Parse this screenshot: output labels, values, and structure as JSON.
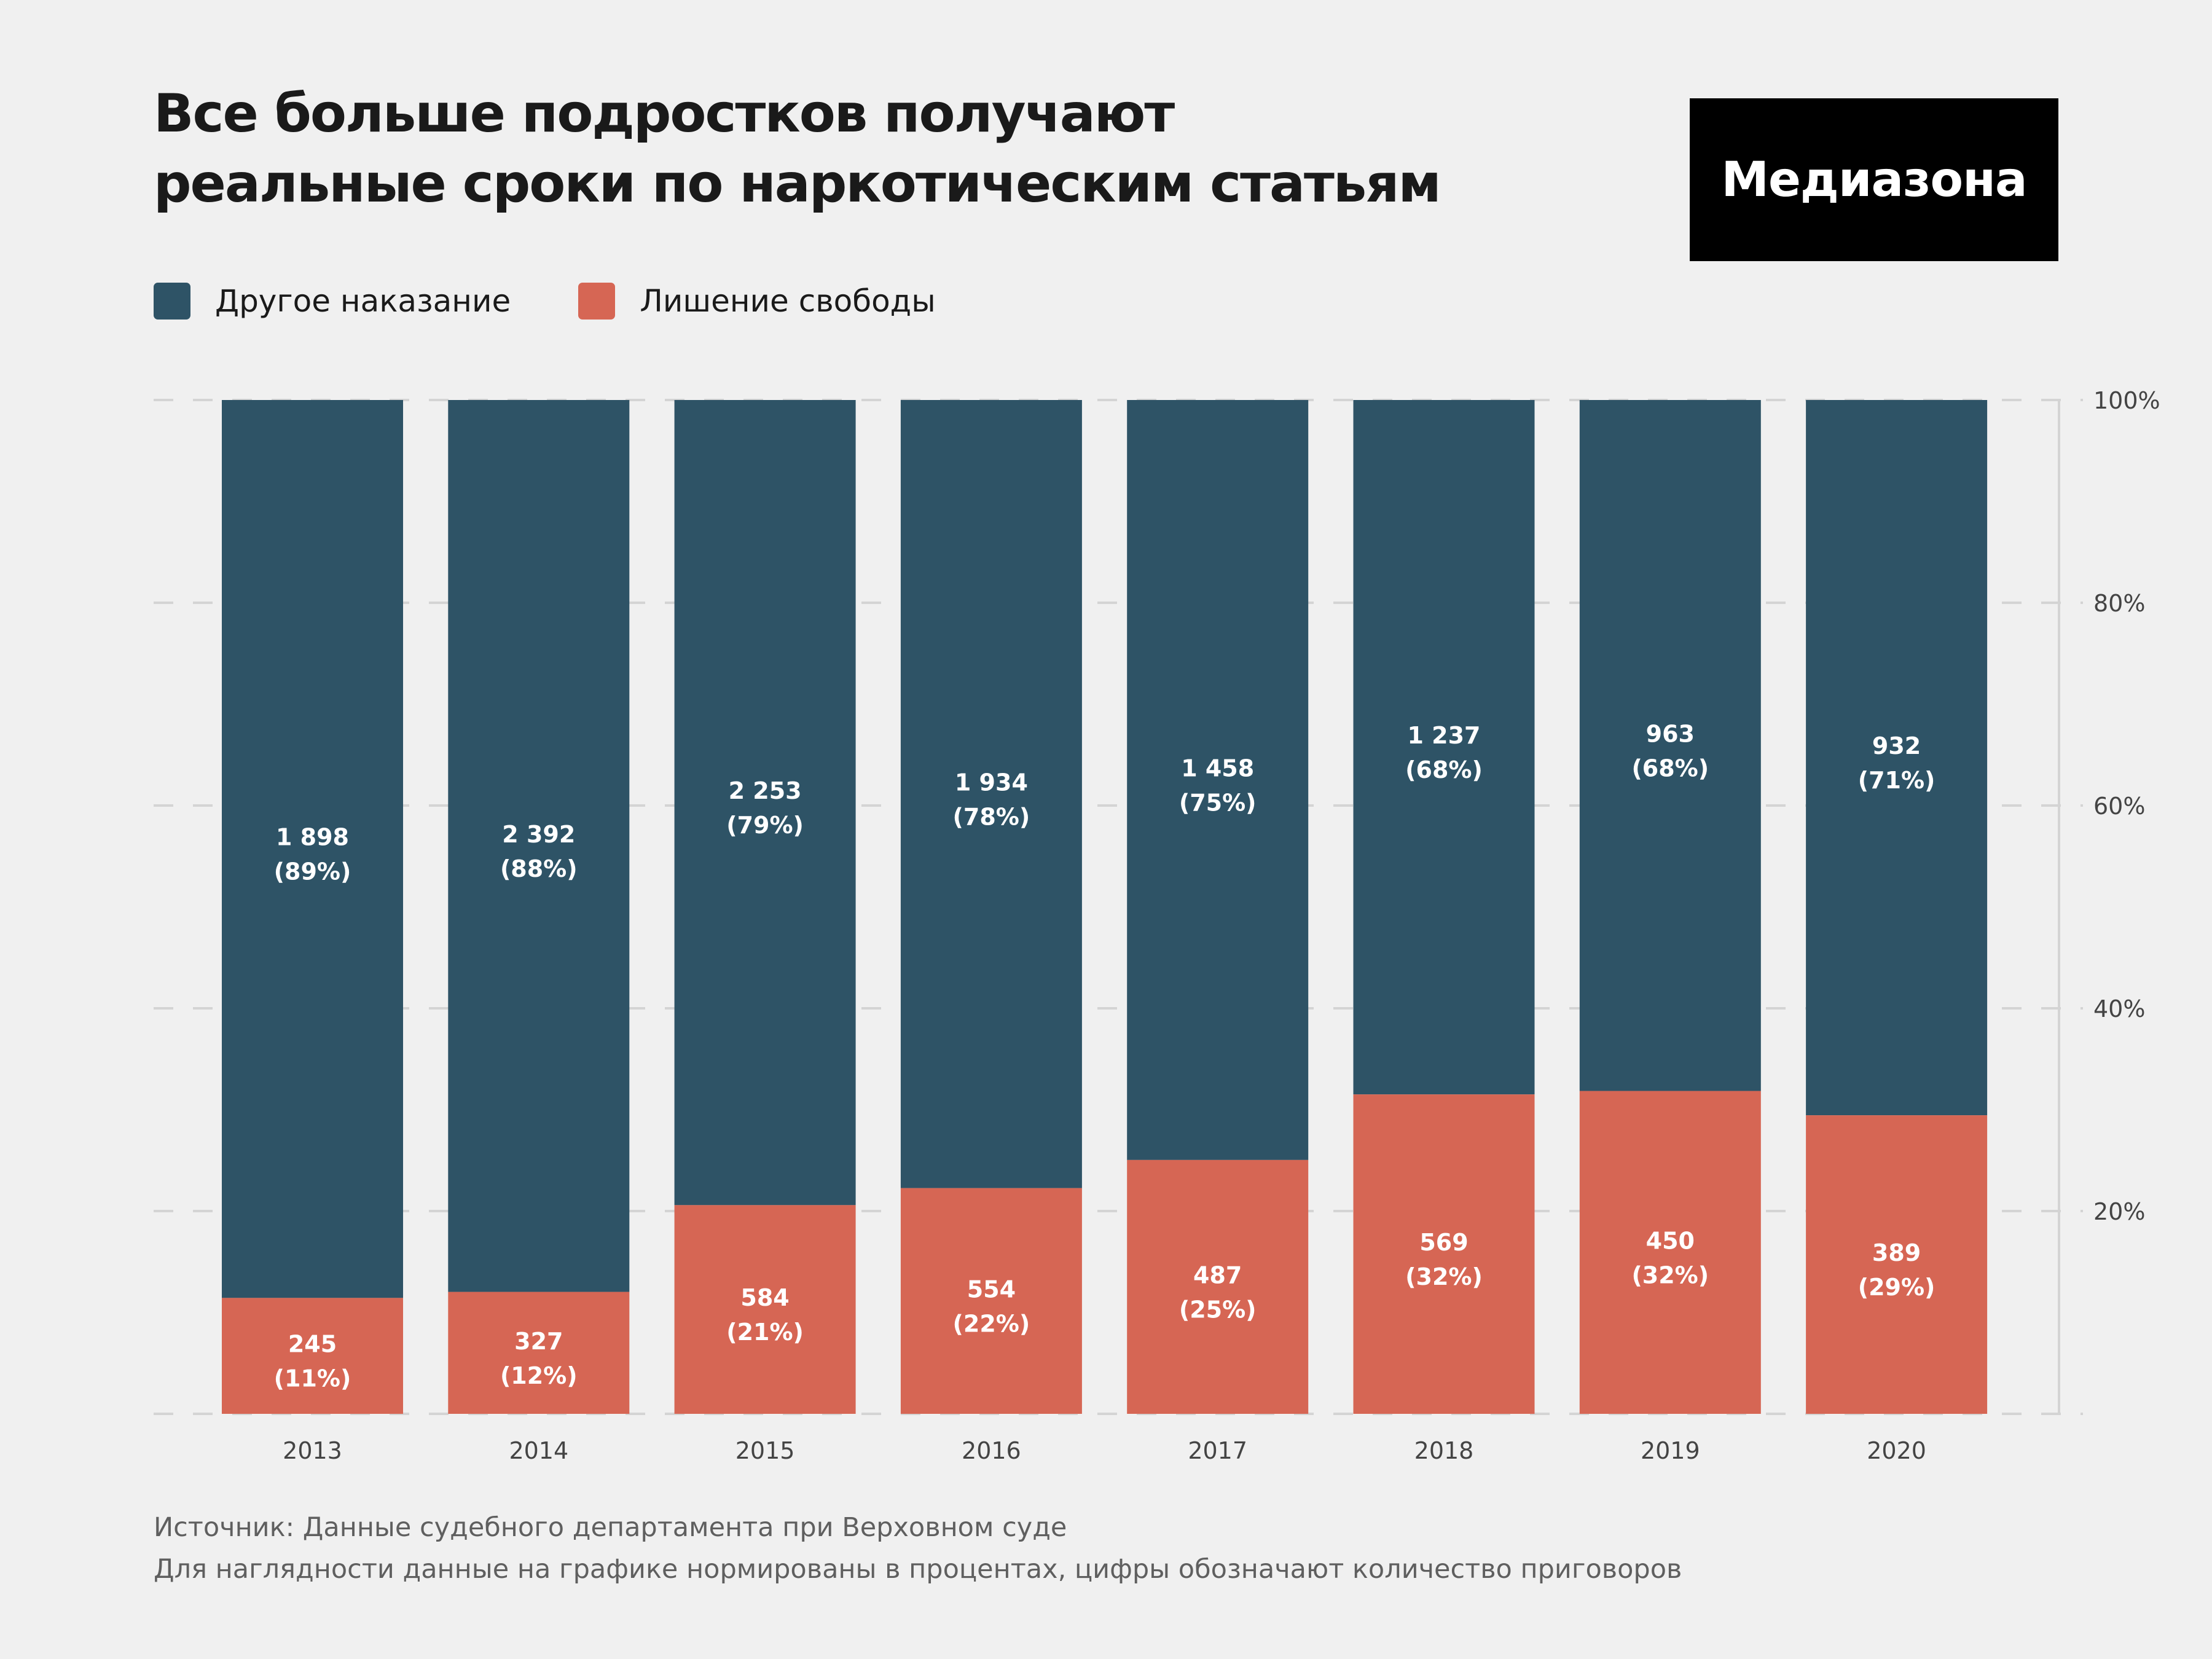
{
  "header": {
    "title_lines": [
      "Все больше подростков получают",
      "реальные сроки по наркотическим статьям"
    ],
    "logo": "Медиазона"
  },
  "legend": [
    {
      "label": "Другое наказание",
      "color": "#2e5366"
    },
    {
      "label": "Лишение свободы",
      "color": "#d66654"
    }
  ],
  "footer": {
    "source": "Источник: Данные судебного департамента при Верховном суде",
    "note": "Для наглядности данные на графике нормированы в процентах, цифры обозначают количество приговоров"
  },
  "chart_data": {
    "type": "bar",
    "stacked": true,
    "normalized": true,
    "title": "Все больше подростков получают реальные сроки по наркотическим статьям",
    "xlabel": "",
    "ylabel": "",
    "categories": [
      "2013",
      "2014",
      "2015",
      "2016",
      "2017",
      "2018",
      "2019",
      "2020"
    ],
    "series": [
      {
        "name": "Лишение свободы",
        "color": "#d66654",
        "values": [
          245,
          327,
          584,
          554,
          487,
          569,
          450,
          389
        ],
        "labels": [
          "245",
          "327",
          "584",
          "554",
          "487",
          "569",
          "450",
          "389"
        ],
        "percent_labels": [
          "(11%)",
          "(12%)",
          "(21%)",
          "(22%)",
          "(25%)",
          "(32%)",
          "(32%)",
          "(29%)"
        ]
      },
      {
        "name": "Другое наказание",
        "color": "#2e5366",
        "values": [
          1898,
          2392,
          2253,
          1934,
          1458,
          1237,
          963,
          932
        ],
        "labels": [
          "1 898",
          "2 392",
          "2 253",
          "1 934",
          "1 458",
          "1 237",
          "963",
          "932"
        ],
        "percent_labels": [
          "(89%)",
          "(88%)",
          "(79%)",
          "(78%)",
          "(75%)",
          "(68%)",
          "(68%)",
          "(71%)"
        ]
      }
    ],
    "y_axis": {
      "position": "right",
      "ylim": [
        0,
        100
      ],
      "ticks": [
        20,
        40,
        60,
        80,
        100
      ],
      "tick_labels": [
        "20%",
        "40%",
        "60%",
        "80%",
        "100%"
      ]
    },
    "grid": "dashed horizontal",
    "legend_position": "top-left"
  }
}
